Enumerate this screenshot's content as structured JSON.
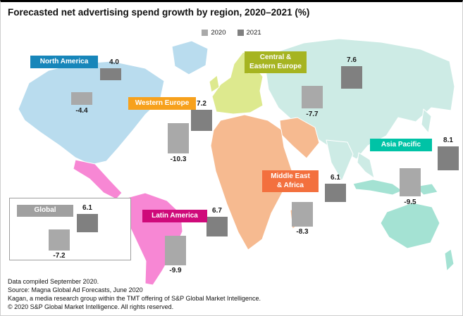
{
  "title": "Forecasted net advertising spend growth by region, 2020–2021 (%)",
  "legend": {
    "y2020": "2020",
    "y2021": "2021"
  },
  "colors": {
    "bar2020": "#a9a9a9",
    "bar2021": "#808080",
    "map": {
      "north_america": "#b9dcee",
      "latin_america": "#f787d4",
      "europe": "#dde98e",
      "asia": "#cdebe5",
      "africa_middle_east": "#f6ba90",
      "oceania": "#a4e2d3"
    }
  },
  "regions": [
    {
      "label": "Global",
      "color": "#a0a0a0",
      "v2020": "-7.2",
      "v2021": "6.1",
      "n2020": -7.2,
      "n2021": 6.1
    },
    {
      "label": "North America",
      "color": "#1786ba",
      "v2020": "-4.4",
      "v2021": "4.0",
      "n2020": -4.4,
      "n2021": 4.0
    },
    {
      "label": "Western Europe",
      "color": "#f7a11c",
      "v2020": "-10.3",
      "v2021": "7.2",
      "n2020": -10.3,
      "n2021": 7.2
    },
    {
      "label": "Central &\nEastern Europe",
      "color": "#a6b421",
      "v2020": "-7.7",
      "v2021": "7.6",
      "n2020": -7.7,
      "n2021": 7.6
    },
    {
      "label": "Asia Pacific",
      "color": "#00c3a6",
      "v2020": "-9.5",
      "v2021": "8.1",
      "n2020": -9.5,
      "n2021": 8.1
    },
    {
      "label": "Middle East\n& Africa",
      "color": "#f3703e",
      "v2020": "-8.3",
      "v2021": "6.1",
      "n2020": -8.3,
      "n2021": 6.1
    },
    {
      "label": "Latin America",
      "color": "#cf0a7a",
      "v2020": "-9.9",
      "v2021": "6.7",
      "n2020": -9.9,
      "n2021": 6.7
    }
  ],
  "chart_data": {
    "type": "bar",
    "title": "Forecasted net advertising spend growth by region, 2020–2021 (%)",
    "categories": [
      "Global",
      "North America",
      "Western Europe",
      "Central & Eastern Europe",
      "Asia Pacific",
      "Middle East & Africa",
      "Latin America"
    ],
    "series": [
      {
        "name": "2020",
        "values": [
          -7.2,
          -4.4,
          -10.3,
          -7.7,
          -9.5,
          -8.3,
          -9.9
        ]
      },
      {
        "name": "2021",
        "values": [
          6.1,
          4.0,
          7.2,
          7.6,
          8.1,
          6.1,
          6.7
        ]
      }
    ],
    "unit": "%",
    "layout": "bars overlaid on world map by region",
    "legend_position": "top-center"
  },
  "footer": {
    "lines": [
      "Data compiled September 2020.",
      "Source: Magna Global Ad Forecasts, June 2020",
      "Kagan, a media research group within the TMT offering of S&P Global Market Intelligence.",
      "© 2020 S&P Global Market Intelligence. All rights reserved."
    ]
  }
}
